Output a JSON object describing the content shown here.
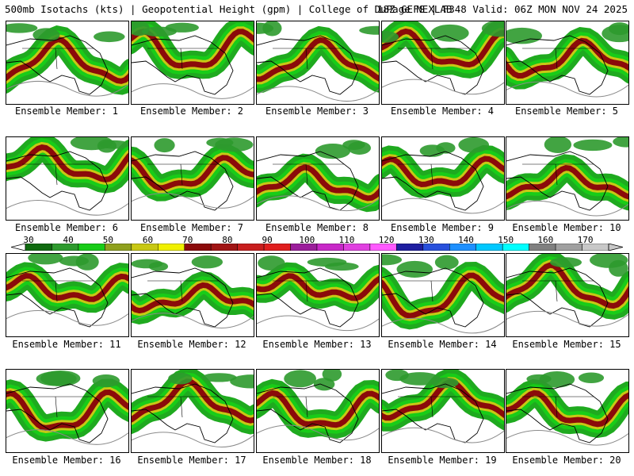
{
  "header": {
    "left": "500mb Isotachs (kts) | Geopotential Height (gpm) | College of DuPage NEXLAB",
    "right": "18Z GEFS | F348 Valid: 06Z MON NOV 24 2025"
  },
  "colorbar": {
    "labels": [
      "30",
      "40",
      "50",
      "60",
      "70",
      "80",
      "90",
      "100",
      "110",
      "120",
      "130",
      "140",
      "150",
      "160",
      "170"
    ],
    "colors": [
      "#0f6a0f",
      "#2e9a2e",
      "#18cc18",
      "#8fa01e",
      "#c8c814",
      "#f0f000",
      "#8b0a0a",
      "#a01414",
      "#c81e1e",
      "#e01e1e",
      "#9b1e9b",
      "#c828c8",
      "#e040e0",
      "#ff5aff",
      "#1e1ea0",
      "#2850dc",
      "#1e90ff",
      "#00c8ff",
      "#00ffff",
      "#808080",
      "#a0a0a0",
      "#c8c8c8"
    ]
  },
  "panels": [
    {
      "caption": "Ensemble Member: 1"
    },
    {
      "caption": "Ensemble Member: 2"
    },
    {
      "caption": "Ensemble Member: 3"
    },
    {
      "caption": "Ensemble Member: 4"
    },
    {
      "caption": "Ensemble Member: 5"
    },
    {
      "caption": "Ensemble Member: 6"
    },
    {
      "caption": "Ensemble Member: 7"
    },
    {
      "caption": "Ensemble Member: 8"
    },
    {
      "caption": "Ensemble Member: 9"
    },
    {
      "caption": "Ensemble Member: 10"
    },
    {
      "caption": "Ensemble Member: 11"
    },
    {
      "caption": "Ensemble Member: 12"
    },
    {
      "caption": "Ensemble Member: 13"
    },
    {
      "caption": "Ensemble Member: 14"
    },
    {
      "caption": "Ensemble Member: 15"
    },
    {
      "caption": "Ensemble Member: 16"
    },
    {
      "caption": "Ensemble Member: 17"
    },
    {
      "caption": "Ensemble Member: 18"
    },
    {
      "caption": "Ensemble Member: 19"
    },
    {
      "caption": "Ensemble Member: 20"
    }
  ]
}
